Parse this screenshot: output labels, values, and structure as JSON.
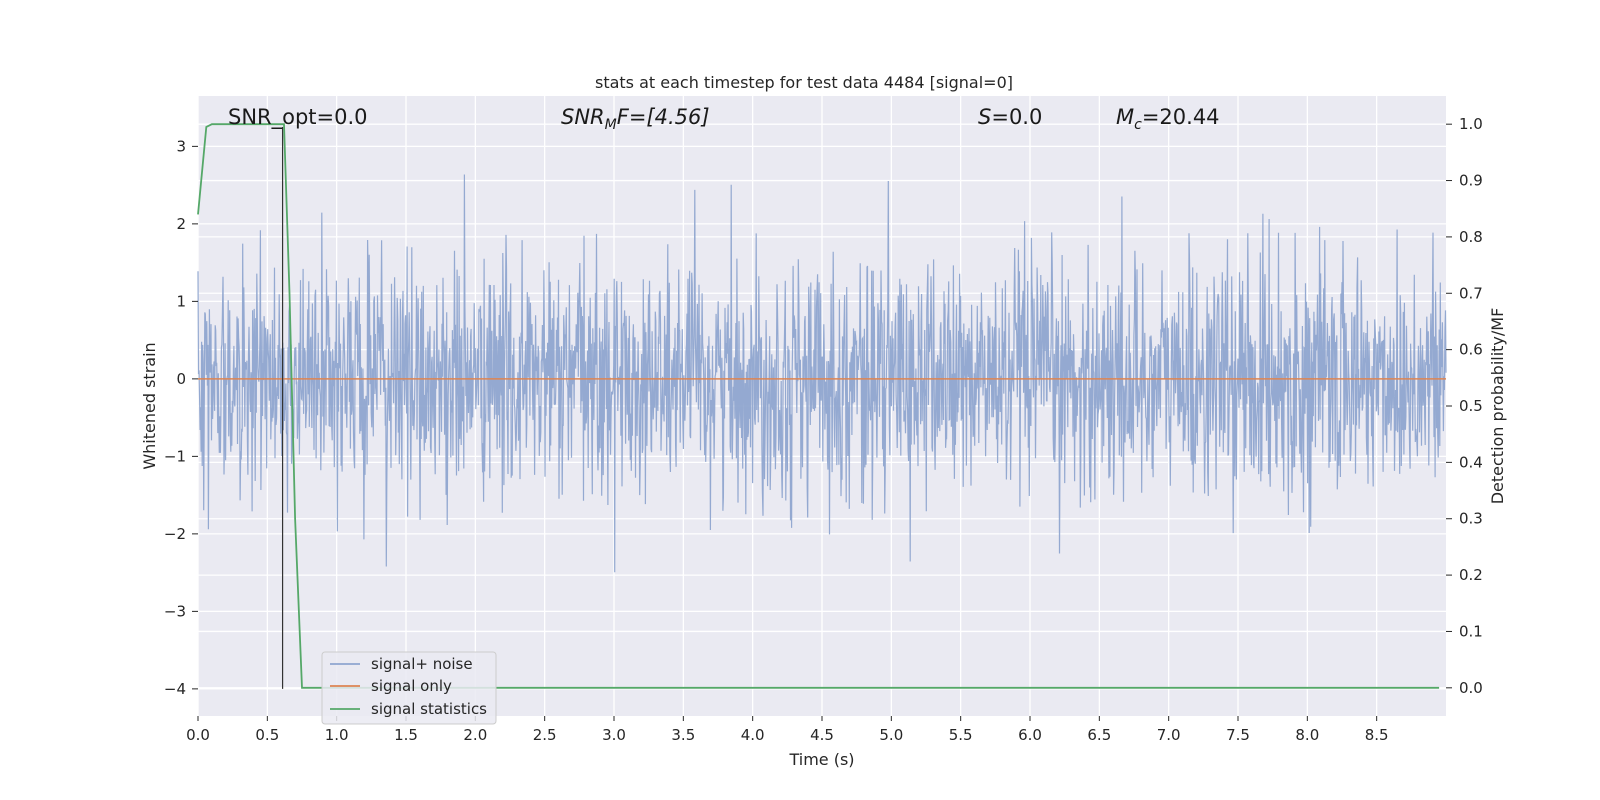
{
  "chart_data": {
    "type": "line",
    "title": "stats at each timestep for test data 4484 [signal=0]",
    "xlabel": "Time (s)",
    "ylabel": "Whitened strain",
    "y2label": "Detection probability/MF",
    "xlim": [
      0.0,
      9.0
    ],
    "ylim": [
      -4.35,
      3.65
    ],
    "y2lim": [
      -0.05,
      1.05
    ],
    "x_ticks": [
      0.0,
      0.5,
      1.0,
      1.5,
      2.0,
      2.5,
      3.0,
      3.5,
      4.0,
      4.5,
      5.0,
      5.5,
      6.0,
      6.5,
      7.0,
      7.5,
      8.0,
      8.5
    ],
    "x_tick_labels": [
      "0.0",
      "0.5",
      "1.0",
      "1.5",
      "2.0",
      "2.5",
      "3.0",
      "3.5",
      "4.0",
      "4.5",
      "5.0",
      "5.5",
      "6.0",
      "6.5",
      "7.0",
      "7.5",
      "8.0",
      "8.5"
    ],
    "y_ticks": [
      3,
      2,
      1,
      0,
      -1,
      -2,
      -3,
      -4
    ],
    "y_tick_labels": [
      "3",
      "2",
      "1",
      "0",
      "−1",
      "−2",
      "−3",
      "−4"
    ],
    "y2_ticks": [
      1.0,
      0.9,
      0.8,
      0.7,
      0.6,
      0.5,
      0.4,
      0.3,
      0.2,
      0.1,
      0.0
    ],
    "y2_tick_labels": [
      "1.0",
      "0.9",
      "0.8",
      "0.7",
      "0.6",
      "0.5",
      "0.4",
      "0.3",
      "0.2",
      "0.1",
      "0.0"
    ],
    "grid": true,
    "legend_position": "lower-left",
    "annotations": {
      "snr_opt": "SNR_opt=0.0",
      "snr_mf_italic": "SNR",
      "snr_mf_sub": "M",
      "snr_mf_rest": "F=[4.56]",
      "s_italic": "S",
      "s_rest": "=0.0",
      "mc_italic": "M",
      "mc_sub": "c",
      "mc_rest": "=20.44"
    },
    "vertical_marker": {
      "x": 0.61,
      "y_from": -4.0,
      "y_to": 3.25
    },
    "series": [
      {
        "name": "signal+ noise",
        "color": "#8fa5cf",
        "axis": "left",
        "description_kind": "noise",
        "band_sigma": 0.75,
        "peak_max": 3.25,
        "peak_min": -3.3
      },
      {
        "name": "signal only",
        "color": "#dd8452",
        "axis": "left",
        "x": [
          0.0,
          9.0
        ],
        "y": [
          0.0,
          0.0
        ]
      },
      {
        "name": "signal statistics",
        "color": "#55a868",
        "axis": "right",
        "x": [
          0.0,
          0.06,
          0.1,
          0.2,
          0.3,
          0.4,
          0.5,
          0.6,
          0.62,
          0.66,
          0.7,
          0.75,
          1.0,
          2.0,
          3.0,
          4.0,
          5.0,
          6.0,
          7.0,
          8.0,
          8.2,
          8.5,
          8.95
        ],
        "y": [
          0.84,
          0.995,
          1.0,
          1.0,
          1.0,
          1.0,
          1.0,
          1.0,
          1.0,
          0.7,
          0.3,
          0.0,
          0.0,
          0.0,
          0.0,
          0.0,
          0.0,
          0.0,
          0.0,
          0.0,
          0.0,
          0.0,
          0.0
        ]
      }
    ],
    "legend_entries": [
      {
        "label": "signal+ noise",
        "color": "#8fa5cf"
      },
      {
        "label": "signal only",
        "color": "#dd8452"
      },
      {
        "label": "signal statistics",
        "color": "#55a868"
      }
    ]
  }
}
